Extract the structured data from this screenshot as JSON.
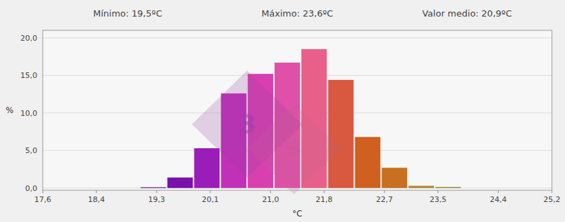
{
  "chart_data": {
    "type": "bar",
    "subtitle": [
      "Mínimo: 19,5ºC",
      "Máximo: 23,6ºC",
      "Valor medio: 20,9ºC"
    ],
    "x_label": "°C",
    "y_label": "%",
    "x": [
      19.25,
      19.65,
      20.05,
      20.45,
      20.85,
      21.25,
      21.65,
      22.05,
      22.45,
      22.85,
      23.25,
      23.65
    ],
    "values": [
      0.1,
      1.4,
      5.3,
      12.6,
      15.2,
      16.7,
      18.5,
      14.4,
      6.8,
      2.7,
      0.3,
      0.15
    ],
    "colors": [
      "#5B0A8C",
      "#7A0FAA",
      "#9B1DB8",
      "#C030B8",
      "#D840B0",
      "#E050A8",
      "#E8608A",
      "#D85840",
      "#D06020",
      "#C87020",
      "#B08830",
      "#A09040"
    ],
    "xlim": [
      17.6,
      25.2
    ],
    "ylim": [
      -0.3,
      21.0
    ],
    "xticks": [
      {
        "value": 17.6,
        "label": "17,6"
      },
      {
        "value": 18.4,
        "label": "18,4"
      },
      {
        "value": 19.3,
        "label": "19,3"
      },
      {
        "value": 20.1,
        "label": "20,1"
      },
      {
        "value": 21.0,
        "label": "21,0"
      },
      {
        "value": 21.8,
        "label": "21,8"
      },
      {
        "value": 22.7,
        "label": "22,7"
      },
      {
        "value": 23.5,
        "label": "23,5"
      },
      {
        "value": 24.4,
        "label": "24,4"
      },
      {
        "value": 25.2,
        "label": "25,2"
      }
    ],
    "yticks": [
      {
        "value": 0.0,
        "label": "0,0"
      },
      {
        "value": 5.0,
        "label": "5,0"
      },
      {
        "value": 10.0,
        "label": "10,0"
      },
      {
        "value": 15.0,
        "label": "15,0"
      },
      {
        "value": 20.0,
        "label": "20,0"
      }
    ],
    "grid": true,
    "annotations": [
      {
        "text": "3",
        "x": 20.65,
        "y": 8.5,
        "color": "#9040A0"
      },
      {
        "text": "3",
        "x": 21.35,
        "y": 5.2,
        "color": "#C06090"
      }
    ]
  }
}
